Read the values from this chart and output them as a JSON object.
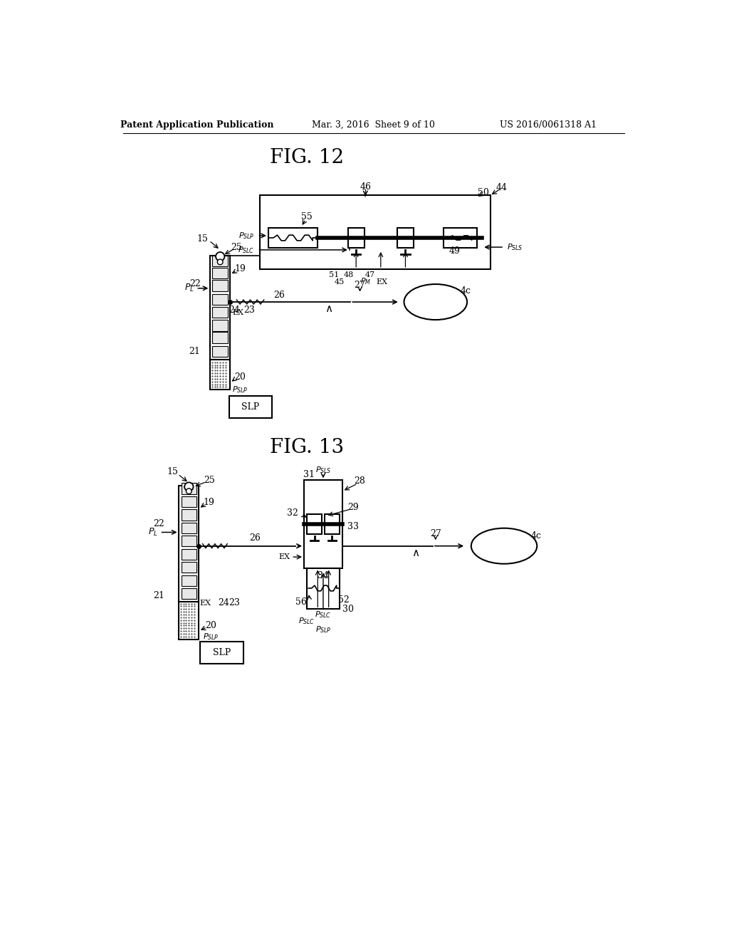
{
  "header_left": "Patent Application Publication",
  "header_mid": "Mar. 3, 2016  Sheet 9 of 10",
  "header_right": "US 2016/0061318 A1",
  "bg_color": "#ffffff"
}
